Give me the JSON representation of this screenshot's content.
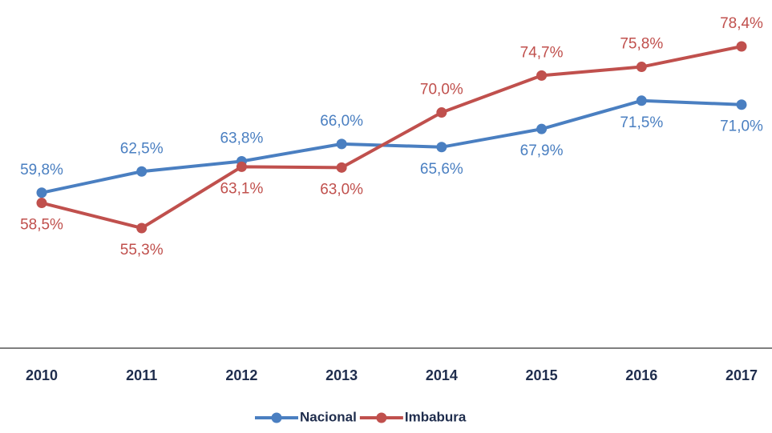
{
  "chart_data": {
    "type": "line",
    "categories": [
      "2010",
      "2011",
      "2012",
      "2013",
      "2014",
      "2015",
      "2016",
      "2017"
    ],
    "series": [
      {
        "name": "Nacional",
        "color": "#4a7fc1",
        "values": [
          59.8,
          62.5,
          63.8,
          66.0,
          65.6,
          67.9,
          71.5,
          71.0
        ],
        "value_labels": [
          "59,8%",
          "62,5%",
          "63,8%",
          "66,0%",
          "65,6%",
          "67,9%",
          "71,5%",
          "71,0%"
        ]
      },
      {
        "name": "Imbabura",
        "color": "#c0504d",
        "values": [
          58.5,
          55.3,
          63.1,
          63.0,
          70.0,
          74.7,
          75.8,
          78.4
        ],
        "value_labels": [
          "58,5%",
          "55,3%",
          "63,1%",
          "63,0%",
          "70,0%",
          "74,7%",
          "75,8%",
          "78,4%"
        ]
      }
    ]
  }
}
